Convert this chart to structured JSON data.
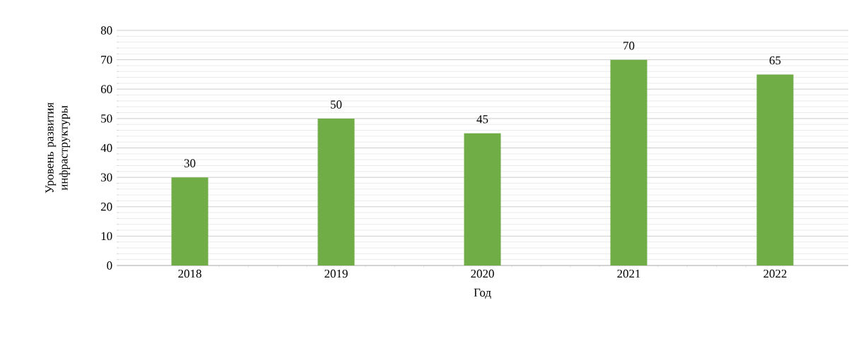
{
  "chart_data": {
    "type": "bar",
    "xlabel": "Год",
    "ylabel": "Уровень развития инфраструктуры",
    "categories": [
      "2018",
      "2019",
      "2020",
      "2021",
      "2022"
    ],
    "values": [
      30,
      50,
      45,
      70,
      65
    ],
    "color": "#70ad47",
    "ylim": [
      0,
      80
    ],
    "yticks": [
      0,
      10,
      20,
      30,
      40,
      50,
      60,
      70,
      80
    ],
    "grid": "y",
    "data_labels": true
  }
}
